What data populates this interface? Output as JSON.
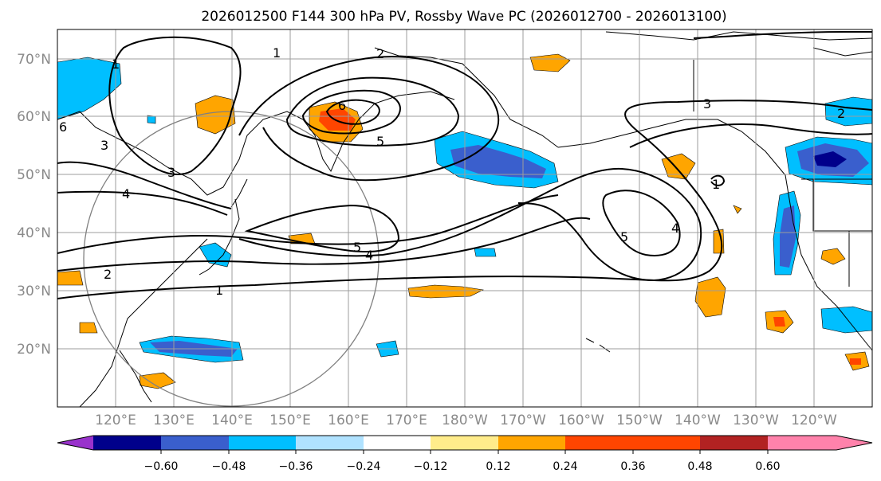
{
  "title": "2026012500 F144 300 hPa PV, Rossby Wave PC (2026012700 - 2026013100)",
  "lat_labels": [
    "70°N",
    "60°N",
    "50°N",
    "40°N",
    "30°N",
    "20°N"
  ],
  "lon_labels": [
    "120°E",
    "130°E",
    "140°E",
    "150°E",
    "160°E",
    "170°E",
    "180°W",
    "170°W",
    "160°W",
    "150°W",
    "140°W",
    "130°W",
    "120°W"
  ],
  "colorbar": {
    "ticks": [
      "−0.60",
      "−0.48",
      "−0.36",
      "−0.24",
      "−0.12",
      "0.12",
      "0.24",
      "0.36",
      "0.48",
      "0.60"
    ],
    "colors": [
      "#9932cc",
      "#00008b",
      "#3a5fcd",
      "#00bfff",
      "#b0e2ff",
      "#ffffff",
      "#ffec8b",
      "#ffa500",
      "#ff4500",
      "#b22222",
      "#ff82ab"
    ]
  },
  "contour_labels": [
    "1",
    "2",
    "3",
    "4",
    "5",
    "6",
    "1",
    "2",
    "3",
    "4",
    "5",
    "4",
    "5",
    "1",
    "3",
    "2",
    "1",
    "6"
  ]
}
